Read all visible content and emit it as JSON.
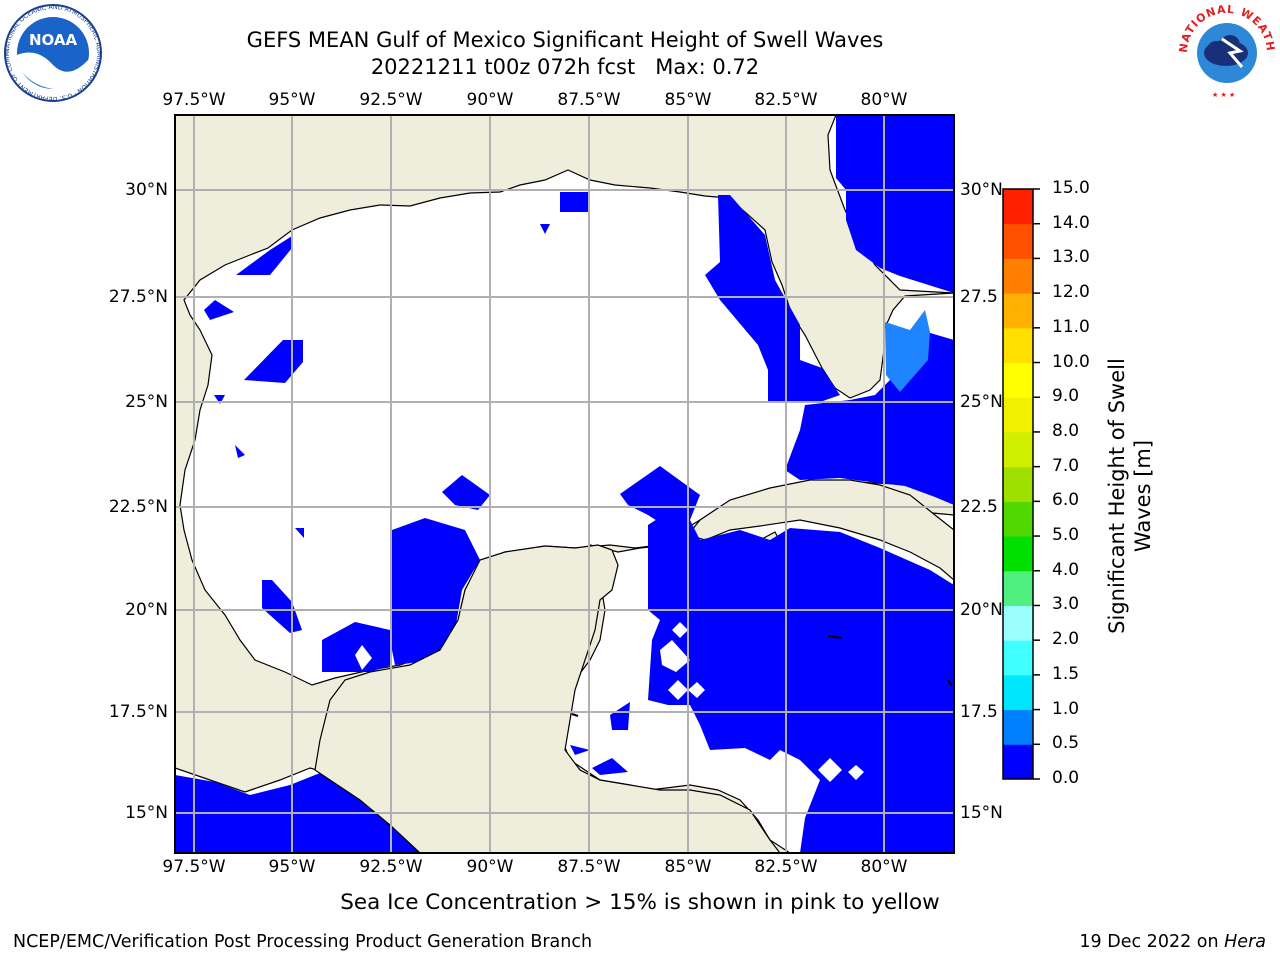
{
  "header": {
    "title_line1": "GEFS MEAN Gulf of Mexico Significant Height of Swell Waves",
    "title_line2": "20221211 t00z 072h fcst   Max: 0.72",
    "left_logo_text": "NOAA",
    "left_logo_ring": "NATIONAL OCEANIC AND ATMOSPHERIC ADMINISTRATION · U.S. DEPARTMENT OF COMMERCE",
    "right_logo_ring": "NATIONAL WEATHER SERVICE"
  },
  "map": {
    "lon_labels": [
      "97.5°W",
      "95°W",
      "92.5°W",
      "90°W",
      "87.5°W",
      "85°W",
      "82.5°W",
      "80°W"
    ],
    "lat_labels_left": [
      "30°N",
      "27.5°N",
      "25°N",
      "22.5°N",
      "20°N",
      "17.5°N",
      "15°N"
    ],
    "lat_labels_right": [
      "30°N",
      "27.5",
      "25°N",
      "22.5",
      "20°N",
      "17.5",
      "15°N"
    ],
    "colors": {
      "land": "#efeedd",
      "sea_zero": "#ffffff",
      "swell_low": "#0000ff",
      "swell_mid": "#1f84ff",
      "grid": "#b0b0b0"
    }
  },
  "colorbar": {
    "label_line1": "Significant Height of Swell",
    "label_line2": "Waves [m]",
    "ticks": [
      "15.0",
      "14.0",
      "13.0",
      "12.0",
      "11.0",
      "10.0",
      "9.0",
      "8.0",
      "7.0",
      "6.0",
      "5.0",
      "4.0",
      "3.0",
      "2.0",
      "1.5",
      "1.0",
      "0.5",
      "0.0"
    ],
    "colors_bottom_to_top": [
      "#0000ff",
      "#0080ff",
      "#00e6ff",
      "#40ffff",
      "#99ffff",
      "#50f080",
      "#00e000",
      "#50d800",
      "#a0e000",
      "#d0f000",
      "#f0f000",
      "#ffff00",
      "#ffe000",
      "#ffb000",
      "#ff8000",
      "#ff5000",
      "#ff2000"
    ]
  },
  "footer": {
    "ice_note": "Sea Ice Concentration > 15% is shown in pink to yellow",
    "left": "NCEP/EMC/Verification Post Processing Product Generation Branch",
    "right_prefix": "19 Dec 2022 on ",
    "right_host": "Hera"
  }
}
